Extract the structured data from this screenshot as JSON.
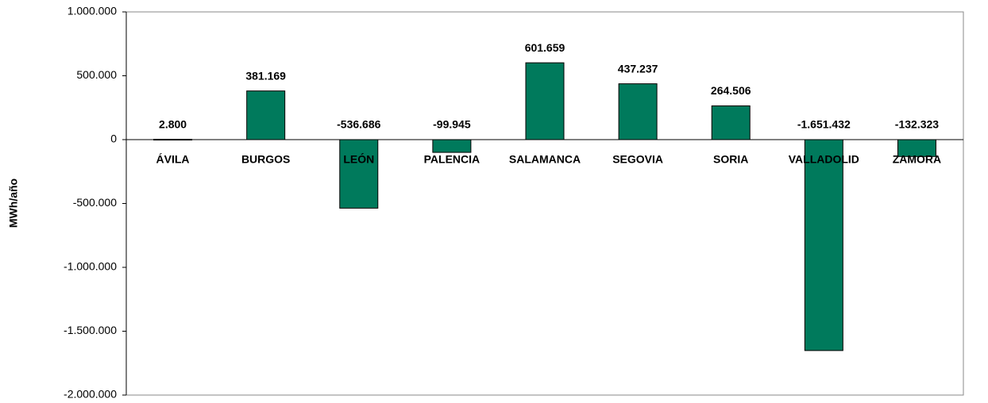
{
  "chart_data": {
    "type": "bar",
    "y_label": "MWh/año",
    "categories": [
      "ÁVILA",
      "BURGOS",
      "LEÓN",
      "PALENCIA",
      "SALAMANCA",
      "SEGOVIA",
      "SORIA",
      "VALLADOLID",
      "ZAMORA"
    ],
    "values": [
      2800,
      381169,
      -536686,
      -99945,
      601659,
      437237,
      264506,
      -1651432,
      -132323
    ],
    "value_labels": [
      "2.800",
      "381.169",
      "-536.686",
      "-99.945",
      "601.659",
      "437.237",
      "264.506",
      "-1.651.432",
      "-132.323"
    ],
    "color": "#007a5c",
    "ylim": [
      -2000000,
      1000000
    ],
    "yticks": [
      {
        "value": -2000000,
        "label": "-2.000.000"
      },
      {
        "value": -1500000,
        "label": "-1.500.000"
      },
      {
        "value": -1000000,
        "label": "-1.000.000"
      },
      {
        "value": -500000,
        "label": "-500.000"
      },
      0,
      {
        "value": 500000,
        "label": "500.000"
      },
      {
        "value": 1000000,
        "label": "1.000.000"
      }
    ],
    "grid": false
  }
}
